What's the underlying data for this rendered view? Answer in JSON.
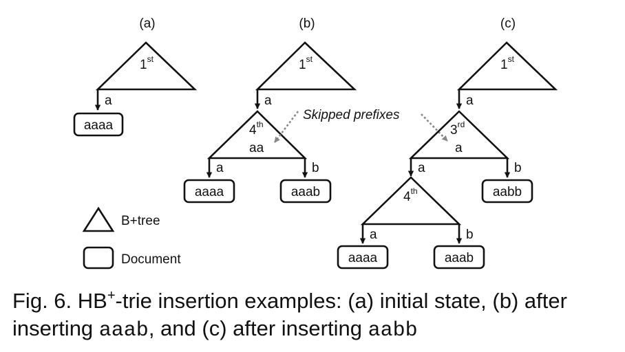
{
  "panels": {
    "a": {
      "label": "(a)",
      "root": {
        "num": "1",
        "sup": "st"
      },
      "edge": "a",
      "doc": "aaaa"
    },
    "b": {
      "label": "(b)",
      "root": {
        "num": "1",
        "sup": "st"
      },
      "edge_root": "a",
      "inner": {
        "num": "4",
        "sup": "th",
        "prefix": "aa"
      },
      "edge_left": "a",
      "edge_right": "b",
      "doc_left": "aaaa",
      "doc_right": "aaab"
    },
    "c": {
      "label": "(c)",
      "root": {
        "num": "1",
        "sup": "st"
      },
      "edge_root": "a",
      "inner": {
        "num": "3",
        "sup": "rd",
        "prefix": "a"
      },
      "edge_left": "a",
      "edge_right": "b",
      "doc_right": "aabb",
      "inner2": {
        "num": "4",
        "sup": "th"
      },
      "edge2_left": "a",
      "edge2_right": "b",
      "doc2_left": "aaaa",
      "doc2_right": "aaab"
    }
  },
  "annotation": "Skipped prefixes",
  "legend": {
    "btree": "B+tree",
    "document": "Document"
  },
  "caption": {
    "prefix": "Fig. 6.  HB",
    "sup": "+",
    "text1": "-trie insertion examples: (a) initial state, (b) after inserting ",
    "code1": "aaab",
    "text2": ", and (c) after inserting ",
    "code2": "aabb"
  }
}
